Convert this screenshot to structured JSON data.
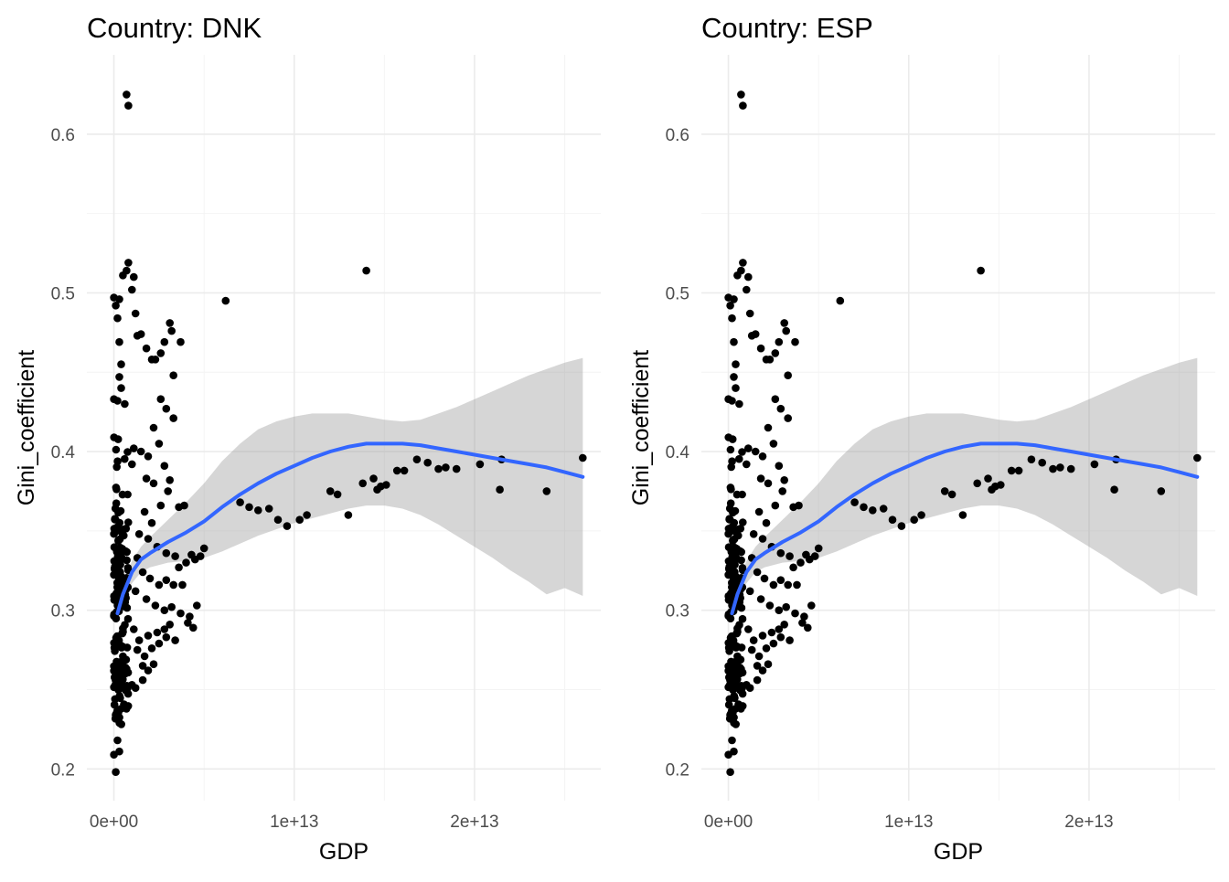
{
  "chart_data": [
    {
      "type": "scatter",
      "title": "Country: DNK",
      "xlabel": "GDP",
      "ylabel": "Gini_coefficient",
      "x_ticks": [
        0,
        10000000000000.0,
        20000000000000.0
      ],
      "x_tick_labels": [
        "0e+00",
        "1e+13",
        "2e+13"
      ],
      "y_ticks": [
        0.2,
        0.3,
        0.4,
        0.5,
        0.6
      ],
      "y_tick_labels": [
        "0.2",
        "0.3",
        "0.4",
        "0.5",
        "0.6"
      ],
      "xlim": [
        -1500000000000.0,
        27000000000000.0
      ],
      "ylim": [
        0.18,
        0.65
      ],
      "points": [
        [
          700000000000.0,
          0.625
        ],
        [
          800000000000.0,
          0.618
        ],
        [
          800000000000.0,
          0.519
        ],
        [
          700000000000.0,
          0.514
        ],
        [
          500000000000.0,
          0.511
        ],
        [
          1100000000000.0,
          0.51
        ],
        [
          1000000000000.0,
          0.502
        ],
        [
          0.0,
          0.497
        ],
        [
          300000000000.0,
          0.496
        ],
        [
          100000000000.0,
          0.492
        ],
        [
          200000000000.0,
          0.484
        ],
        [
          1200000000000.0,
          0.487
        ],
        [
          1300000000000.0,
          0.473
        ],
        [
          1500000000000.0,
          0.474
        ],
        [
          300000000000.0,
          0.469
        ],
        [
          400000000000.0,
          0.455
        ],
        [
          300000000000.0,
          0.447
        ],
        [
          400000000000.0,
          0.44
        ],
        [
          0.0,
          0.433
        ],
        [
          200000000000.0,
          0.432
        ],
        [
          600000000000.0,
          0.43
        ],
        [
          1800000000000.0,
          0.465
        ],
        [
          2100000000000.0,
          0.458
        ],
        [
          2300000000000.0,
          0.458
        ],
        [
          2600000000000.0,
          0.462
        ],
        [
          2800000000000.0,
          0.469
        ],
        [
          3100000000000.0,
          0.481
        ],
        [
          3200000000000.0,
          0.476
        ],
        [
          3700000000000.0,
          0.469
        ],
        [
          3300000000000.0,
          0.448
        ],
        [
          2600000000000.0,
          0.433
        ],
        [
          2900000000000.0,
          0.427
        ],
        [
          3300000000000.0,
          0.421
        ],
        [
          2200000000000.0,
          0.415
        ],
        [
          1100000000000.0,
          0.402
        ],
        [
          1500000000000.0,
          0.4
        ],
        [
          1900000000000.0,
          0.397
        ],
        [
          2500000000000.0,
          0.405
        ],
        [
          2800000000000.0,
          0.391
        ],
        [
          3100000000000.0,
          0.382
        ],
        [
          1000000000000.0,
          0.392
        ],
        [
          1800000000000.0,
          0.383
        ],
        [
          2200000000000.0,
          0.38
        ],
        [
          3000000000000.0,
          0.375
        ],
        [
          2600000000000.0,
          0.366
        ],
        [
          1700000000000.0,
          0.362
        ],
        [
          2100000000000.0,
          0.355
        ],
        [
          1400000000000.0,
          0.348
        ],
        [
          1900000000000.0,
          0.345
        ],
        [
          2400000000000.0,
          0.34
        ],
        [
          2900000000000.0,
          0.336
        ],
        [
          3400000000000.0,
          0.334
        ],
        [
          3600000000000.0,
          0.327
        ],
        [
          4000000000000.0,
          0.33
        ],
        [
          4300000000000.0,
          0.335
        ],
        [
          4500000000000.0,
          0.332
        ],
        [
          4800000000000.0,
          0.334
        ],
        [
          5000000000000.0,
          0.339
        ],
        [
          3600000000000.0,
          0.365
        ],
        [
          3900000000000.0,
          0.366
        ],
        [
          1300000000000.0,
          0.333
        ],
        [
          1600000000000.0,
          0.324
        ],
        [
          2000000000000.0,
          0.32
        ],
        [
          2500000000000.0,
          0.316
        ],
        [
          2900000000000.0,
          0.319
        ],
        [
          3300000000000.0,
          0.316
        ],
        [
          3800000000000.0,
          0.316
        ],
        [
          1200000000000.0,
          0.312
        ],
        [
          1800000000000.0,
          0.307
        ],
        [
          2300000000000.0,
          0.303
        ],
        [
          2800000000000.0,
          0.3
        ],
        [
          3200000000000.0,
          0.302
        ],
        [
          3700000000000.0,
          0.298
        ],
        [
          4200000000000.0,
          0.296
        ],
        [
          4600000000000.0,
          0.303
        ],
        [
          4100000000000.0,
          0.292
        ],
        [
          4400000000000.0,
          0.289
        ],
        [
          3100000000000.0,
          0.291
        ],
        [
          2800000000000.0,
          0.288
        ],
        [
          2400000000000.0,
          0.286
        ],
        [
          1900000000000.0,
          0.284
        ],
        [
          1400000000000.0,
          0.281
        ],
        [
          1100000000000.0,
          0.288
        ],
        [
          1300000000000.0,
          0.275
        ],
        [
          1700000000000.0,
          0.271
        ],
        [
          2100000000000.0,
          0.276
        ],
        [
          2500000000000.0,
          0.279
        ],
        [
          2900000000000.0,
          0.283
        ],
        [
          3400000000000.0,
          0.281
        ],
        [
          1600000000000.0,
          0.265
        ],
        [
          1900000000000.0,
          0.262
        ],
        [
          2200000000000.0,
          0.266
        ],
        [
          1600000000000.0,
          0.256
        ],
        [
          1000000000000.0,
          0.253
        ],
        [
          1200000000000.0,
          0.251
        ],
        [
          700000000000.0,
          0.263
        ],
        [
          500000000000.0,
          0.271
        ],
        [
          6200000000000.0,
          0.495
        ],
        [
          14000000000000.0,
          0.514
        ],
        [
          7000000000000.0,
          0.368
        ],
        [
          7500000000000.0,
          0.365
        ],
        [
          8000000000000.0,
          0.363
        ],
        [
          8600000000000.0,
          0.364
        ],
        [
          9100000000000.0,
          0.357
        ],
        [
          9600000000000.0,
          0.353
        ],
        [
          10300000000000.0,
          0.357
        ],
        [
          10700000000000.0,
          0.36
        ],
        [
          12000000000000.0,
          0.375
        ],
        [
          12400000000000.0,
          0.373
        ],
        [
          13000000000000.0,
          0.36
        ],
        [
          13800000000000.0,
          0.38
        ],
        [
          14400000000000.0,
          0.383
        ],
        [
          14600000000000.0,
          0.376
        ],
        [
          14800000000000.0,
          0.378
        ],
        [
          15100000000000.0,
          0.379
        ],
        [
          15700000000000.0,
          0.388
        ],
        [
          16100000000000.0,
          0.388
        ],
        [
          16800000000000.0,
          0.395
        ],
        [
          17400000000000.0,
          0.393
        ],
        [
          18000000000000.0,
          0.389
        ],
        [
          18400000000000.0,
          0.39
        ],
        [
          19000000000000.0,
          0.389
        ],
        [
          20300000000000.0,
          0.392
        ],
        [
          21400000000000.0,
          0.376
        ],
        [
          21500000000000.0,
          0.395
        ],
        [
          24000000000000.0,
          0.375
        ],
        [
          26000000000000.0,
          0.396
        ]
      ],
      "dense_cluster": {
        "x_range": [
          0,
          800000000000.0
        ],
        "y_range": [
          0.198,
          0.41
        ],
        "approx_count": 170,
        "bottom_points": [
          [
            100000000000.0,
            0.198
          ],
          [
            0.0,
            0.209
          ],
          [
            300000000000.0,
            0.211
          ],
          [
            200000000000.0,
            0.218
          ]
        ]
      },
      "smooth": {
        "method": "loess",
        "color": "#3366FF",
        "x": [
          200000000000.0,
          500000000000.0,
          1000000000000.0,
          1500000000000.0,
          2000000000000.0,
          3000000000000.0,
          4000000000000.0,
          5000000000000.0,
          6000000000000.0,
          7000000000000.0,
          8000000000000.0,
          9000000000000.0,
          10000000000000.0,
          11000000000000.0,
          12000000000000.0,
          13000000000000.0,
          14000000000000.0,
          15000000000000.0,
          16000000000000.0,
          17000000000000.0,
          18000000000000.0,
          19000000000000.0,
          20000000000000.0,
          21000000000000.0,
          22000000000000.0,
          23000000000000.0,
          24000000000000.0,
          25000000000000.0,
          26000000000000.0
        ],
        "y": [
          0.298,
          0.31,
          0.324,
          0.332,
          0.336,
          0.343,
          0.349,
          0.356,
          0.365,
          0.373,
          0.38,
          0.386,
          0.391,
          0.396,
          0.4,
          0.403,
          0.405,
          0.405,
          0.405,
          0.404,
          0.402,
          0.4,
          0.398,
          0.396,
          0.394,
          0.392,
          0.39,
          0.387,
          0.384
        ],
        "ymin": [
          0.292,
          0.304,
          0.317,
          0.324,
          0.327,
          0.33,
          0.331,
          0.333,
          0.337,
          0.342,
          0.347,
          0.351,
          0.355,
          0.358,
          0.361,
          0.364,
          0.366,
          0.366,
          0.364,
          0.36,
          0.354,
          0.347,
          0.34,
          0.333,
          0.325,
          0.318,
          0.31,
          0.314,
          0.309
        ],
        "ymax": [
          0.304,
          0.316,
          0.331,
          0.34,
          0.346,
          0.357,
          0.368,
          0.38,
          0.394,
          0.405,
          0.414,
          0.419,
          0.422,
          0.424,
          0.424,
          0.424,
          0.422,
          0.42,
          0.419,
          0.42,
          0.424,
          0.428,
          0.433,
          0.438,
          0.443,
          0.448,
          0.452,
          0.456,
          0.459
        ]
      }
    },
    {
      "type": "scatter",
      "title": "Country: ESP",
      "xlabel": "GDP",
      "ylabel": "Gini_coefficient",
      "x_ticks": [
        0,
        10000000000000.0,
        20000000000000.0
      ],
      "x_tick_labels": [
        "0e+00",
        "1e+13",
        "2e+13"
      ],
      "y_ticks": [
        0.2,
        0.3,
        0.4,
        0.5,
        0.6
      ],
      "y_tick_labels": [
        "0.2",
        "0.3",
        "0.4",
        "0.5",
        "0.6"
      ],
      "xlim": [
        -1500000000000.0,
        27000000000000.0
      ],
      "ylim": [
        0.18,
        0.65
      ],
      "same_data_as_panel": 0
    }
  ]
}
